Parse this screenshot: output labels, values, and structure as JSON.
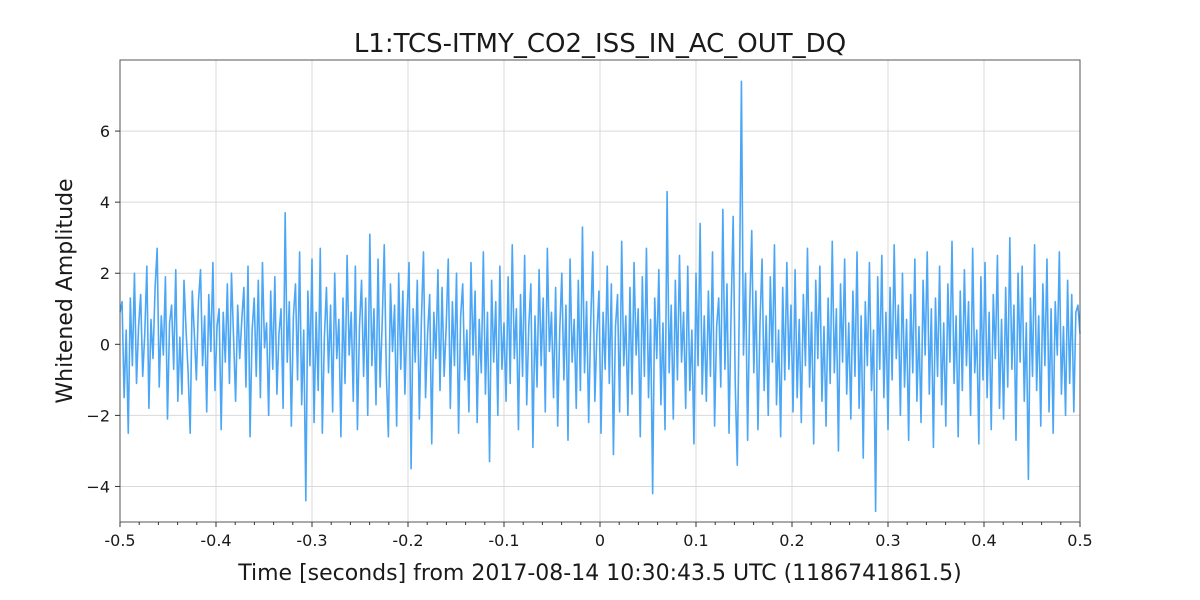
{
  "chart_data": {
    "type": "line",
    "title": "L1:TCS-ITMY_CO2_ISS_IN_AC_OUT_DQ",
    "xlabel": "Time [seconds] from 2017-08-14 10:30:43.5 UTC (1186741861.5)",
    "ylabel": "Whitened Amplitude",
    "xlim": [
      -0.5,
      0.5
    ],
    "ylim": [
      -5,
      8
    ],
    "xticks": [
      -0.5,
      -0.4,
      -0.3,
      -0.2,
      -0.1,
      0,
      0.1,
      0.2,
      0.3,
      0.4,
      0.5
    ],
    "xtick_labels": [
      "-0.5",
      "-0.4",
      "-0.3",
      "-0.2",
      "-0.1",
      "0",
      "0.1",
      "0.2",
      "0.3",
      "0.4",
      "0.5"
    ],
    "yticks": [
      -4,
      -2,
      0,
      2,
      4,
      6
    ],
    "ytick_labels": [
      "−4",
      "−2",
      "0",
      "2",
      "4",
      "6"
    ],
    "grid": true,
    "legend": "none",
    "series": [
      {
        "color": "#4ba6f5",
        "x_start": -0.5,
        "x_end": 0.5,
        "y": [
          0.9,
          1.2,
          -1.5,
          0.4,
          -2.5,
          1.3,
          -0.6,
          2.0,
          -1.1,
          0.5,
          1.4,
          -0.9,
          0.3,
          2.2,
          -1.8,
          0.7,
          -0.4,
          1.6,
          2.7,
          -1.2,
          0.8,
          -0.3,
          1.9,
          -2.1,
          0.6,
          1.1,
          -0.7,
          2.1,
          -1.6,
          0.2,
          -1.4,
          1.8,
          0.4,
          -0.8,
          -2.5,
          1.5,
          0.3,
          -1.0,
          1.2,
          2.1,
          -0.6,
          0.8,
          -1.9,
          1.4,
          -0.2,
          2.3,
          -1.3,
          0.5,
          1.0,
          -2.4,
          0.9,
          -0.5,
          1.7,
          -1.1,
          2.0,
          0.2,
          -1.6,
          1.1,
          -0.4,
          0.7,
          1.6,
          -1.2,
          2.2,
          -2.6,
          0.4,
          1.3,
          -0.9,
          1.8,
          -1.5,
          2.3,
          -0.1,
          0.6,
          -2.0,
          1.5,
          -0.7,
          1.9,
          -1.4,
          0.3,
          1.0,
          -1.8,
          3.7,
          -0.5,
          1.2,
          -2.3,
          0.8,
          1.7,
          -1.0,
          2.6,
          -1.7,
          0.4,
          -4.4,
          1.5,
          -0.6,
          2.4,
          -2.2,
          0.9,
          -1.3,
          2.7,
          -2.5,
          0.2,
          1.6,
          -0.8,
          1.1,
          -1.9,
          2.0,
          -0.4,
          0.7,
          -2.6,
          1.3,
          -1.1,
          2.5,
          -0.3,
          0.9,
          -1.6,
          2.2,
          -2.4,
          0.5,
          1.8,
          -0.9,
          1.3,
          -2.0,
          3.1,
          -0.6,
          1.0,
          -1.7,
          2.4,
          -1.2,
          0.6,
          2.8,
          -0.8,
          -2.6,
          1.7,
          -0.2,
          1.1,
          -2.3,
          2.0,
          -0.7,
          1.5,
          -1.4,
          0.8,
          2.3,
          -3.5,
          1.0,
          -0.5,
          1.8,
          -2.1,
          0.7,
          2.6,
          -1.5,
          0.3,
          1.4,
          -2.8,
          0.9,
          -0.4,
          2.1,
          -1.3,
          1.6,
          -0.9,
          0.5,
          2.4,
          -1.8,
          1.2,
          -0.6,
          2.0,
          -2.5,
          0.8,
          1.7,
          -1.0,
          0.4,
          -1.9,
          2.3,
          -0.3,
          1.5,
          -2.2,
          0.7,
          -0.8,
          2.6,
          -1.4,
          0.9,
          -3.3,
          1.8,
          -0.5,
          1.2,
          -2.0,
          2.2,
          -0.7,
          0.6,
          -1.6,
          1.9,
          -1.1,
          2.8,
          -0.4,
          1.0,
          -2.4,
          1.4,
          -0.9,
          2.5,
          -1.7,
          0.5,
          1.7,
          -2.9,
          0.8,
          -1.2,
          2.1,
          -0.6,
          1.3,
          -1.9,
          2.7,
          -0.2,
          0.9,
          -1.5,
          1.6,
          -2.3,
          0.4,
          2.0,
          -1.0,
          1.1,
          -2.7,
          2.4,
          -0.5,
          0.7,
          -1.8,
          1.8,
          -1.3,
          3.3,
          -0.8,
          1.2,
          -2.2,
          0.6,
          2.6,
          -1.6,
          0.3,
          1.5,
          -2.5,
          0.9,
          -0.7,
          2.2,
          -1.1,
          1.7,
          -3.1,
          0.5,
          1.4,
          -1.9,
          2.9,
          -0.6,
          0.8,
          -2.0,
          1.6,
          -1.4,
          2.3,
          -0.3,
          1.0,
          -2.6,
          1.9,
          -0.9,
          2.7,
          -1.5,
          0.7,
          -4.2,
          1.3,
          -0.4,
          2.1,
          -1.7,
          0.6,
          -2.4,
          4.3,
          -0.8,
          1.1,
          -2.1,
          1.8,
          -1.0,
          2.5,
          -0.5,
          0.9,
          -1.8,
          2.2,
          -1.3,
          0.4,
          -2.8,
          2.0,
          -0.6,
          3.4,
          -1.4,
          0.8,
          -1.6,
          1.5,
          -0.9,
          2.6,
          -2.3,
          0.5,
          1.3,
          -1.2,
          3.8,
          -0.7,
          1.7,
          -2.5,
          0.9,
          3.6,
          -1.1,
          -3.4,
          1.2,
          7.4,
          -0.3,
          2.0,
          -2.7,
          1.0,
          3.2,
          -0.8,
          1.5,
          -2.4,
          0.6,
          2.4,
          -1.3,
          0.8,
          -2.0,
          1.9,
          -0.5,
          2.8,
          -1.7,
          0.4,
          -2.6,
          1.6,
          -1.0,
          2.3,
          -0.7,
          1.1,
          -1.9,
          2.1,
          -1.5,
          0.7,
          -2.2,
          1.4,
          -0.6,
          2.7,
          -1.2,
          0.9,
          -2.8,
          1.8,
          -0.4,
          2.2,
          -1.6,
          0.5,
          -2.3,
          1.3,
          -1.1,
          2.9,
          -0.8,
          1.0,
          -3.0,
          1.7,
          -0.5,
          2.4,
          -1.4,
          0.6,
          -2.1,
          1.5,
          -0.9,
          2.6,
          -1.8,
          0.8,
          -3.2,
          1.2,
          -0.6,
          2.3,
          -1.3,
          0.4,
          -4.7,
          1.9,
          -0.7,
          2.5,
          -1.5,
          0.9,
          -2.4,
          1.6,
          -1.0,
          2.8,
          -0.4,
          1.1,
          -2.0,
          2.0,
          -1.2,
          0.7,
          -2.7,
          1.4,
          -0.8,
          2.4,
          -1.6,
          0.5,
          -2.2,
          1.8,
          -0.3,
          2.6,
          -1.4,
          1.0,
          -2.9,
          1.3,
          -0.9,
          2.2,
          -1.7,
          0.6,
          -2.3,
          1.7,
          -0.5,
          2.9,
          -1.1,
          0.8,
          -2.6,
          1.5,
          -1.3,
          2.1,
          -0.6,
          1.2,
          -2.0,
          2.7,
          -0.8,
          0.4,
          -2.8,
          1.9,
          -1.0,
          2.3,
          -1.5,
          0.9,
          -2.4,
          1.4,
          -0.4,
          2.5,
          -1.8,
          0.7,
          -2.1,
          1.6,
          -1.2,
          3.0,
          -0.7,
          1.1,
          -2.7,
          2.0,
          -0.5,
          2.2,
          -1.6,
          0.6,
          -3.8,
          1.3,
          -0.9,
          2.8,
          -1.3,
          0.8,
          -2.3,
          1.7,
          -0.6,
          2.4,
          -1.9,
          1.0,
          -2.5,
          1.2,
          -0.3,
          2.6,
          -1.4,
          0.5,
          -2.0,
          1.8,
          -1.1,
          1.4,
          -1.9,
          0.9,
          1.1,
          0.3
        ]
      }
    ]
  }
}
